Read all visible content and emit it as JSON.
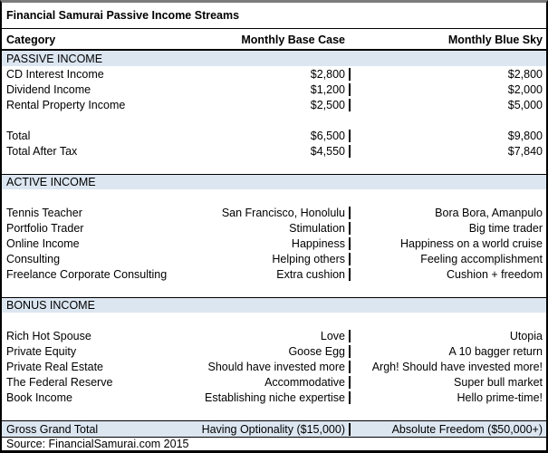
{
  "title": "Financial Samurai Passive Income Streams",
  "columns": [
    "Category",
    "Monthly Base Case",
    "Monthly Blue Sky"
  ],
  "rows": [
    {
      "type": "band",
      "label": "PASSIVE INCOME"
    },
    {
      "type": "data",
      "cells": [
        "CD Interest Income",
        "$2,800",
        "$2,800"
      ]
    },
    {
      "type": "data",
      "cells": [
        "Dividend Income",
        "$1,200",
        "$2,000"
      ]
    },
    {
      "type": "data",
      "cells": [
        "Rental Property Income",
        "$2,500",
        "$5,000"
      ]
    },
    {
      "type": "blank"
    },
    {
      "type": "data",
      "cells": [
        "Total",
        "$6,500",
        "$9,800"
      ]
    },
    {
      "type": "data",
      "cells": [
        "Total After Tax",
        "$4,550",
        "$7,840"
      ]
    },
    {
      "type": "blank"
    },
    {
      "type": "band",
      "label": "ACTIVE INCOME"
    },
    {
      "type": "blank"
    },
    {
      "type": "data",
      "cells": [
        "Tennis Teacher",
        "San Francisco, Honolulu",
        "Bora Bora, Amanpulo"
      ]
    },
    {
      "type": "data",
      "cells": [
        "Portfolio Trader",
        "Stimulation",
        "Big time trader"
      ]
    },
    {
      "type": "data",
      "cells": [
        "Online Income",
        "Happiness",
        "Happiness on a world cruise"
      ]
    },
    {
      "type": "data",
      "cells": [
        "Consulting",
        "Helping others",
        "Feeling accomplishment"
      ]
    },
    {
      "type": "data",
      "cells": [
        "Freelance Corporate Consulting",
        "Extra cushion",
        "Cushion + freedom"
      ]
    },
    {
      "type": "blank"
    },
    {
      "type": "band",
      "label": "BONUS INCOME"
    },
    {
      "type": "blank"
    },
    {
      "type": "data",
      "cells": [
        "Rich Hot Spouse",
        "Love",
        "Utopia"
      ]
    },
    {
      "type": "data",
      "cells": [
        "Private Equity",
        "Goose Egg",
        "A 10 bagger return"
      ]
    },
    {
      "type": "data",
      "cells": [
        "Private Real Estate",
        "Should have invested more",
        "Argh! Should have invested more!"
      ]
    },
    {
      "type": "data",
      "cells": [
        "The Federal Reserve",
        "Accommodative",
        "Super bull market"
      ]
    },
    {
      "type": "data",
      "cells": [
        "Book Income",
        "Establishing niche expertise",
        "Hello prime-time!"
      ]
    },
    {
      "type": "blank"
    },
    {
      "type": "grand",
      "cells": [
        "Gross Grand Total",
        "Having Optionality ($15,000)",
        "Absolute Freedom ($50,000+)"
      ]
    }
  ],
  "source": "Source: FinancialSamurai.com 2015",
  "colors": {
    "section_band": "#dce6f1",
    "grid_border": "#000000",
    "outer_top_border": "#7b7b7b",
    "text": "#000000",
    "background": "#ffffff"
  }
}
